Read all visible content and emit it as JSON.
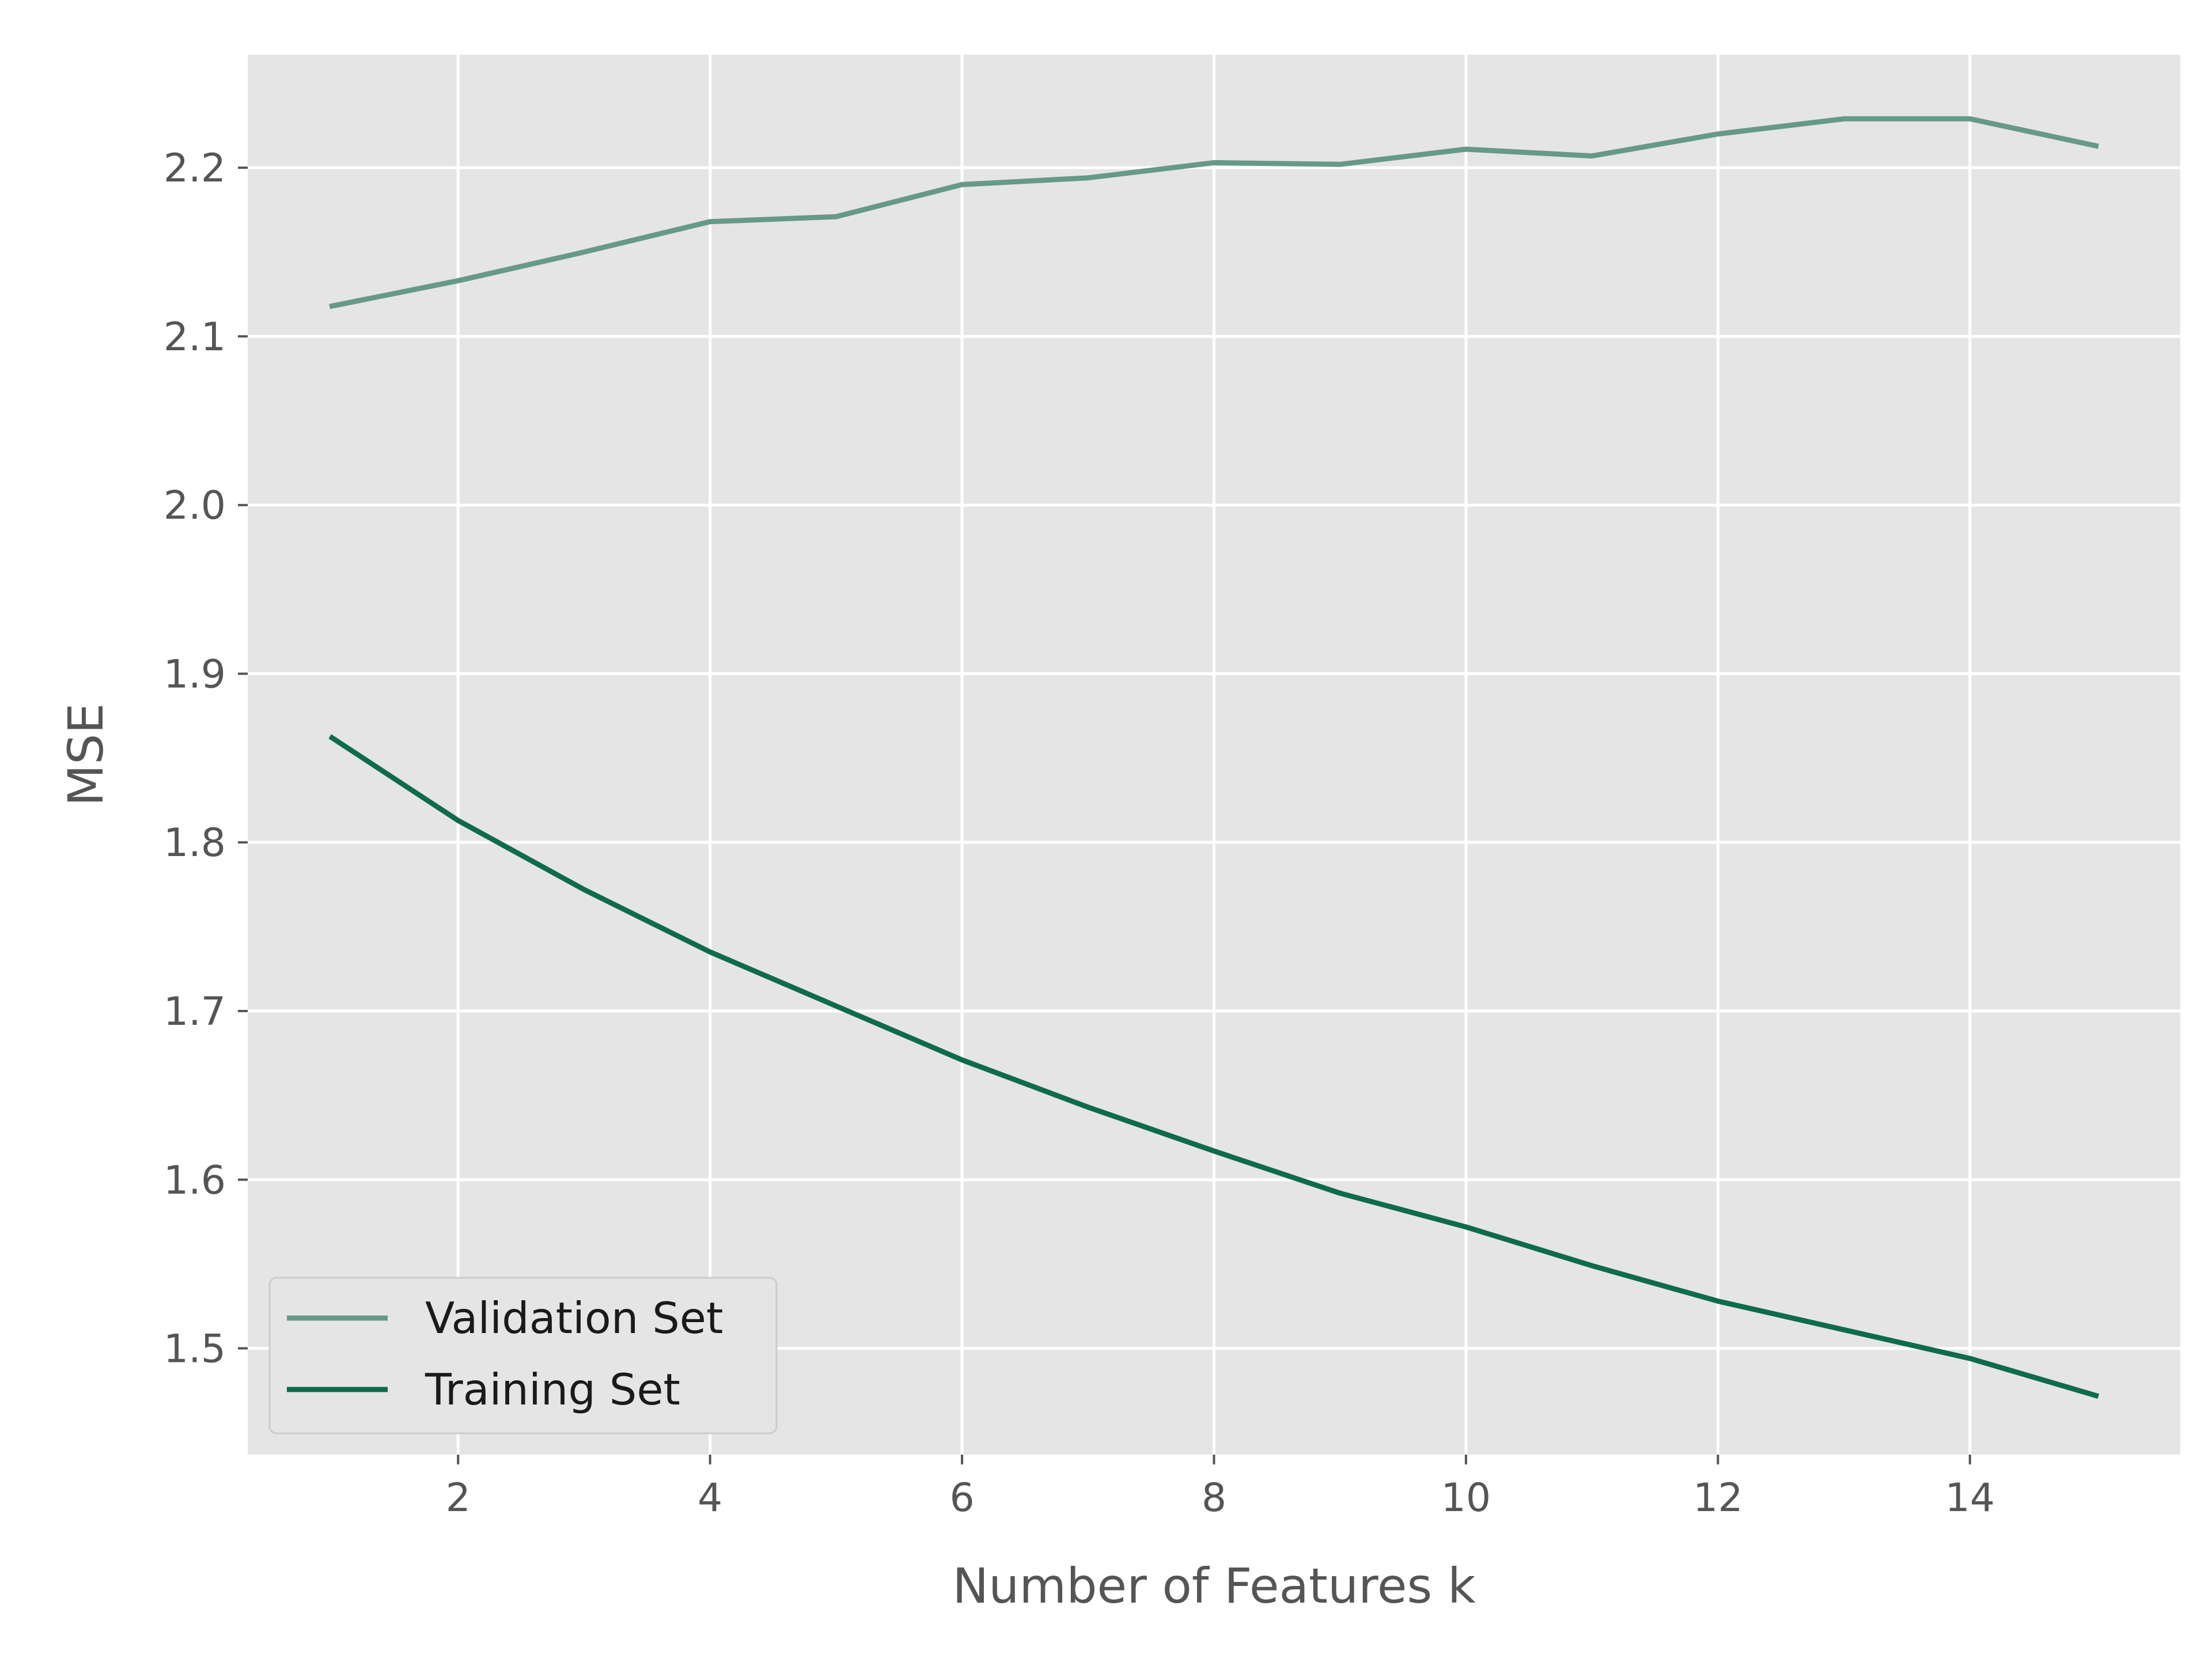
{
  "chart_data": {
    "type": "line",
    "title": "",
    "xlabel": "Number of Features k",
    "ylabel": "MSE",
    "xlim": [
      0.33,
      15.67
    ],
    "ylim": [
      1.437,
      2.267
    ],
    "xticks": [
      2,
      4,
      6,
      8,
      10,
      12,
      14
    ],
    "xtick_labels": [
      "2",
      "4",
      "6",
      "8",
      "10",
      "12",
      "14"
    ],
    "yticks": [
      1.5,
      1.6,
      1.7,
      1.8,
      1.9,
      2.0,
      2.1,
      2.2
    ],
    "ytick_labels": [
      "1.5",
      "1.6",
      "1.7",
      "1.8",
      "1.9",
      "2.0",
      "2.1",
      "2.2"
    ],
    "grid": true,
    "legend_position": "lower-left",
    "x": [
      1,
      2,
      3,
      4,
      5,
      6,
      7,
      8,
      9,
      10,
      11,
      12,
      13,
      14,
      15
    ],
    "series": [
      {
        "name": "Validation Set",
        "color": "#66998a",
        "values": [
          2.118,
          2.133,
          2.15,
          2.168,
          2.171,
          2.19,
          2.194,
          2.203,
          2.202,
          2.211,
          2.207,
          2.22,
          2.229,
          2.229,
          2.213
        ]
      },
      {
        "name": "Training Set",
        "color": "#0e6b4b",
        "values": [
          1.862,
          1.813,
          1.772,
          1.735,
          1.703,
          1.671,
          1.643,
          1.617,
          1.592,
          1.572,
          1.549,
          1.528,
          1.511,
          1.494,
          1.472
        ]
      }
    ],
    "colors": {
      "plot_background": "#e5e5e5",
      "grid": "#ffffff",
      "tick": "#555555"
    }
  }
}
